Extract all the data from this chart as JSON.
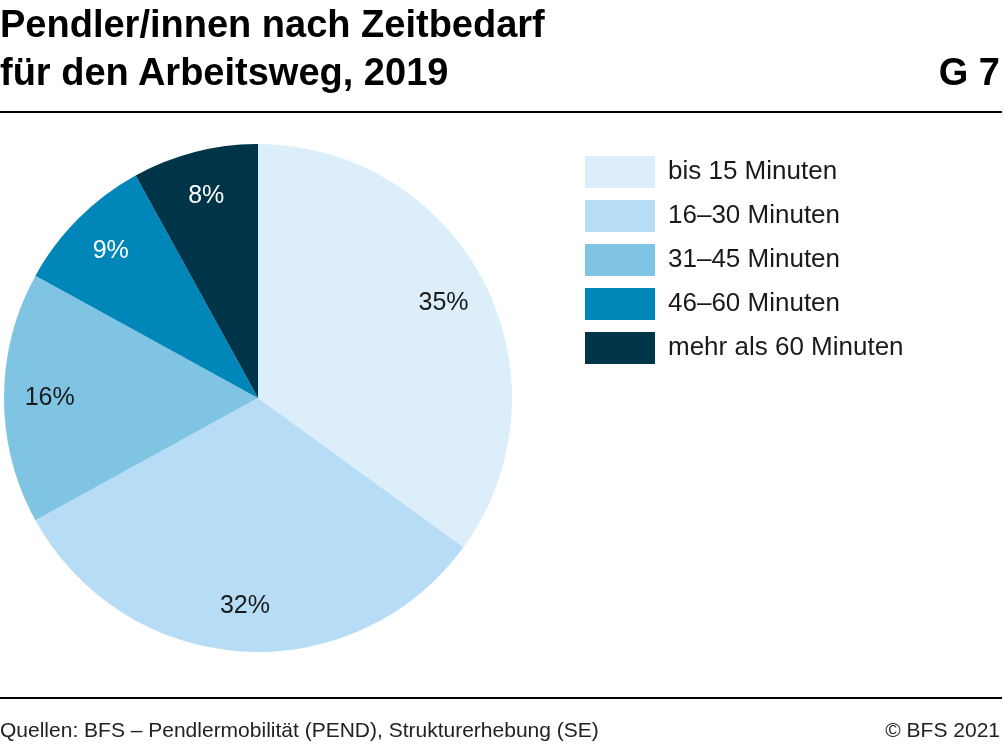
{
  "chart_data": {
    "type": "pie",
    "title": "Pendler/innen nach Zeitbedarf für den Arbeitsweg, 2019",
    "categories": [
      "bis 15 Minuten",
      "16–30 Minuten",
      "31–45 Minuten",
      "46–60 Minuten",
      "mehr als 60 Minuten"
    ],
    "values": [
      35,
      32,
      16,
      9,
      8
    ],
    "colors": [
      "#dbeefa",
      "#b6ddf5",
      "#80c4e3",
      "#0086b8",
      "#003549"
    ],
    "value_labels": [
      "35%",
      "32%",
      "16%",
      "9%",
      "8%"
    ],
    "legend": "top right",
    "annotations": [
      "G 7",
      "Quellen: BFS – Pendlermobilität (PEND), Strukturerhebung (SE)",
      "© BFS 2021"
    ]
  }
}
